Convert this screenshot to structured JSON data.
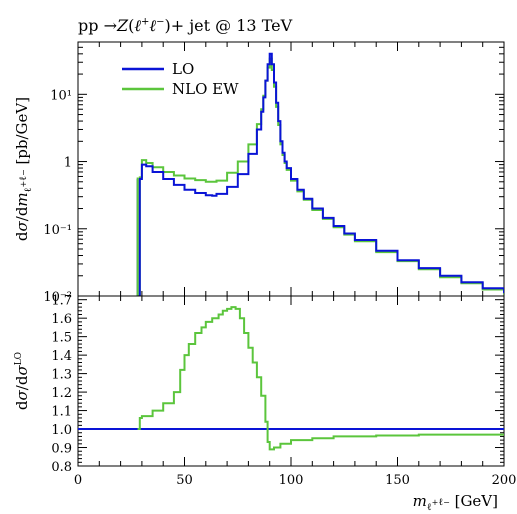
{
  "title_parts": {
    "prefix": "pp →",
    "z": "Z",
    "open_paren": "(",
    "ell1": "ℓ",
    "plus": "+",
    "ell2": "ℓ",
    "minus": "−",
    "suffix": ")+ jet @ 13 TeV"
  },
  "colors": {
    "lo": "#0a14d6",
    "nlo": "#5bc53c"
  },
  "chart_data": [
    {
      "type": "line",
      "panel": "main",
      "ylabel": "dσ/dm_ℓ+ℓ− [pb/GeV]",
      "yscale": "log",
      "ylim": [
        0.01,
        60
      ],
      "xlim": [
        0,
        200
      ],
      "y_ticks": [
        {
          "v": 0.01,
          "label": "10⁻²"
        },
        {
          "v": 0.1,
          "label": "10⁻¹"
        },
        {
          "v": 1,
          "label": "1"
        },
        {
          "v": 10,
          "label": "10¹"
        }
      ],
      "legend_position": "top-left",
      "x": [
        28,
        29,
        30,
        32,
        35,
        40,
        45,
        50,
        55,
        60,
        63,
        65,
        70,
        75,
        80,
        84,
        86,
        87,
        88,
        89,
        90,
        91,
        92,
        93,
        94,
        95,
        96,
        97,
        98,
        100,
        103,
        106,
        110,
        115,
        120,
        125,
        130,
        140,
        150,
        160,
        170,
        180,
        190,
        200
      ],
      "series": [
        {
          "name": "LO",
          "color_key": "lo",
          "values": [
            0.01,
            0.55,
            0.9,
            0.85,
            0.7,
            0.55,
            0.45,
            0.38,
            0.34,
            0.315,
            0.31,
            0.33,
            0.42,
            0.65,
            1.3,
            3.0,
            5.5,
            9.0,
            16,
            28,
            40,
            28,
            15,
            7.5,
            4.0,
            2.0,
            1.35,
            1.0,
            0.8,
            0.55,
            0.38,
            0.28,
            0.2,
            0.145,
            0.11,
            0.085,
            0.068,
            0.047,
            0.034,
            0.026,
            0.02,
            0.016,
            0.013,
            0.011
          ]
        },
        {
          "name": "NLO EW",
          "color_key": "nlo",
          "values": [
            0.01,
            0.58,
            1.05,
            0.95,
            0.82,
            0.7,
            0.62,
            0.56,
            0.53,
            0.5,
            0.5,
            0.52,
            0.68,
            1.0,
            1.8,
            3.6,
            6.0,
            9.5,
            16,
            25,
            34,
            23,
            13,
            6.5,
            3.5,
            1.8,
            1.25,
            0.95,
            0.75,
            0.52,
            0.36,
            0.27,
            0.19,
            0.14,
            0.105,
            0.082,
            0.065,
            0.045,
            0.033,
            0.025,
            0.019,
            0.0155,
            0.0125,
            0.0105
          ]
        }
      ]
    },
    {
      "type": "line",
      "panel": "ratio",
      "ylabel": "dσ/dσ^LO",
      "xlabel": "m_ℓ+ℓ− [GeV]",
      "ylim": [
        0.8,
        1.72
      ],
      "xlim": [
        0,
        200
      ],
      "x_ticks": [
        0,
        50,
        100,
        150,
        200
      ],
      "y_ticks": [
        0.8,
        0.9,
        1.0,
        1.1,
        1.2,
        1.3,
        1.4,
        1.5,
        1.6,
        1.7
      ],
      "y_tick_labels": [
        "0.8",
        "0.9",
        "1.0",
        "1.1",
        "1.2",
        "1.3",
        "1.4",
        "1.5",
        "1.6",
        "1.7"
      ],
      "x_tick_labels": [
        "0",
        "50",
        "100",
        "150",
        "200"
      ],
      "x": [
        28,
        29,
        30,
        35,
        40,
        45,
        48,
        50,
        52,
        55,
        58,
        60,
        63,
        66,
        68,
        70,
        72,
        74,
        76,
        78,
        80,
        82,
        84,
        86,
        88,
        89,
        90,
        92,
        95,
        100,
        110,
        120,
        140,
        160,
        180,
        200
      ],
      "series": [
        {
          "name": "LO",
          "color_key": "lo",
          "values": [
            1.0,
            1.0,
            1.0,
            1.0,
            1.0,
            1.0,
            1.0,
            1.0,
            1.0,
            1.0,
            1.0,
            1.0,
            1.0,
            1.0,
            1.0,
            1.0,
            1.0,
            1.0,
            1.0,
            1.0,
            1.0,
            1.0,
            1.0,
            1.0,
            1.0,
            1.0,
            1.0,
            1.0,
            1.0,
            1.0,
            1.0,
            1.0,
            1.0,
            1.0,
            1.0,
            1.0
          ]
        },
        {
          "name": "NLO EW",
          "color_key": "nlo",
          "values": [
            1.0,
            1.06,
            1.07,
            1.1,
            1.14,
            1.2,
            1.32,
            1.4,
            1.46,
            1.52,
            1.55,
            1.58,
            1.6,
            1.62,
            1.64,
            1.65,
            1.66,
            1.65,
            1.6,
            1.52,
            1.44,
            1.36,
            1.28,
            1.18,
            1.04,
            0.93,
            0.89,
            0.9,
            0.92,
            0.94,
            0.95,
            0.96,
            0.965,
            0.97,
            0.97,
            0.975
          ]
        }
      ]
    }
  ]
}
